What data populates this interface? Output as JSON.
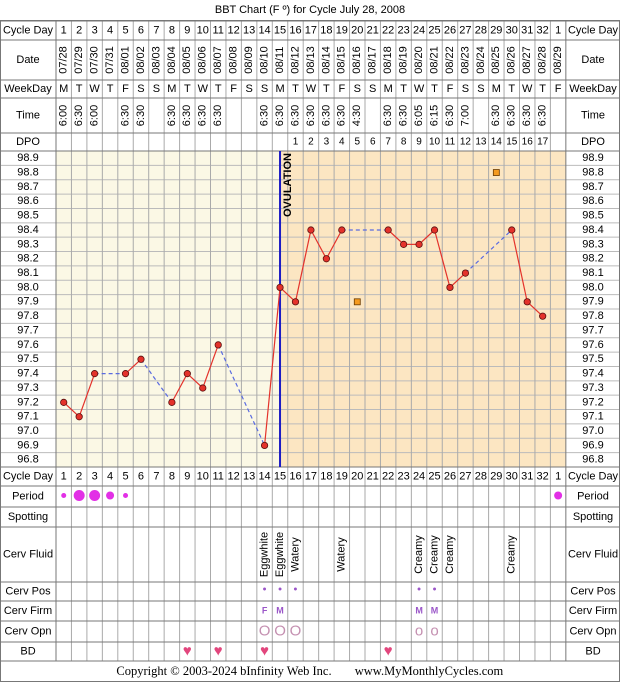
{
  "title": "BBT Chart (F º) for Cycle July 28, 2008",
  "footer": {
    "copyright": "Copyright © 2003-2024 bInfinity Web Inc.",
    "site": "www.MyMonthlyCycles.com"
  },
  "labels": {
    "cycle_day": "Cycle Day",
    "date": "Date",
    "weekday": "WeekDay",
    "time": "Time",
    "dpo": "DPO",
    "period": "Period",
    "spotting": "Spotting",
    "cerv_fluid": "Cerv Fluid",
    "cerv_pos": "Cerv Pos",
    "cerv_firm": "Cerv Firm",
    "cerv_opn": "Cerv Opn",
    "bd": "BD"
  },
  "days": {
    "date": [
      "07/28",
      "07/29",
      "07/30",
      "07/31",
      "08/01",
      "08/02",
      "08/03",
      "08/04",
      "08/05",
      "08/06",
      "08/07",
      "08/08",
      "08/09",
      "08/10",
      "08/11",
      "08/12",
      "08/13",
      "08/14",
      "08/15",
      "08/16",
      "08/17",
      "08/18",
      "08/19",
      "08/20",
      "08/21",
      "08/22",
      "08/23",
      "08/24",
      "08/25",
      "08/26",
      "08/27",
      "08/28",
      "08/29"
    ],
    "weekday": [
      "M",
      "T",
      "W",
      "T",
      "F",
      "S",
      "S",
      "M",
      "T",
      "W",
      "T",
      "F",
      "S",
      "S",
      "M",
      "T",
      "W",
      "T",
      "F",
      "S",
      "S",
      "M",
      "T",
      "W",
      "T",
      "F",
      "S",
      "S",
      "M",
      "T",
      "W",
      "T",
      "F"
    ],
    "time": [
      "6:00",
      "6:30",
      "6:00",
      null,
      "6:30",
      "6:30",
      null,
      "6:30",
      "6:30",
      "6:30",
      "6:30",
      null,
      null,
      "6:30",
      "6:30",
      "6:30",
      "6:30",
      "6:30",
      "6:30",
      "4:30",
      null,
      "6:30",
      "6:30",
      "6:05",
      "6:15",
      "6:30",
      "7:00",
      null,
      "6:30",
      "6:30",
      "6:30",
      "6:30",
      null
    ],
    "dpo": [
      null,
      null,
      null,
      null,
      null,
      null,
      null,
      null,
      null,
      null,
      null,
      null,
      null,
      null,
      null,
      1,
      2,
      3,
      4,
      5,
      6,
      7,
      8,
      9,
      10,
      11,
      12,
      13,
      14,
      15,
      16,
      17,
      null
    ],
    "period": [
      1,
      3,
      3,
      2,
      1,
      null,
      null,
      null,
      null,
      null,
      null,
      null,
      null,
      null,
      null,
      null,
      null,
      null,
      null,
      null,
      null,
      null,
      null,
      null,
      null,
      null,
      null,
      null,
      null,
      null,
      null,
      null,
      2
    ],
    "cerv_fluid": [
      null,
      null,
      null,
      null,
      null,
      null,
      null,
      null,
      null,
      null,
      null,
      null,
      null,
      "Eggwhite",
      "Eggwhite",
      "Watery",
      null,
      null,
      "Watery",
      null,
      null,
      null,
      null,
      "Creamy",
      "Creamy",
      "Creamy",
      null,
      null,
      null,
      "Creamy",
      null,
      null,
      null
    ],
    "cerv_pos": [
      null,
      null,
      null,
      null,
      null,
      null,
      null,
      null,
      null,
      null,
      null,
      null,
      null,
      "•",
      "•",
      "•",
      null,
      null,
      null,
      null,
      null,
      null,
      null,
      "•",
      "•",
      null,
      null,
      null,
      null,
      null,
      null,
      null,
      null
    ],
    "cerv_firm": [
      null,
      null,
      null,
      null,
      null,
      null,
      null,
      null,
      null,
      null,
      null,
      null,
      null,
      "F",
      "M",
      null,
      null,
      null,
      null,
      null,
      null,
      null,
      null,
      "M",
      "M",
      null,
      null,
      null,
      null,
      null,
      null,
      null,
      null
    ],
    "cerv_opn": [
      null,
      null,
      null,
      null,
      null,
      null,
      null,
      null,
      null,
      null,
      null,
      null,
      null,
      "O",
      "O",
      "O",
      null,
      null,
      null,
      null,
      null,
      null,
      null,
      "o",
      "o",
      null,
      null,
      null,
      null,
      null,
      null,
      null,
      null
    ],
    "bd": [
      null,
      null,
      null,
      null,
      null,
      null,
      null,
      null,
      "♥",
      null,
      "♥",
      null,
      null,
      "♥",
      null,
      null,
      null,
      null,
      null,
      null,
      null,
      "♥",
      null,
      null,
      null,
      null,
      null,
      null,
      null,
      null,
      null,
      null,
      null
    ]
  },
  "chart_data": {
    "type": "line",
    "categories": [
      1,
      2,
      3,
      4,
      5,
      6,
      7,
      8,
      9,
      10,
      11,
      12,
      13,
      14,
      15,
      16,
      17,
      18,
      19,
      20,
      21,
      22,
      23,
      24,
      25,
      26,
      27,
      28,
      29,
      30,
      31,
      32,
      1
    ],
    "series": [
      {
        "color": "#e4322b",
        "values": [
          97.2,
          97.1,
          97.4,
          null,
          97.4,
          97.5,
          null,
          97.2,
          97.4,
          97.3,
          97.6,
          null,
          null,
          96.9,
          98.0,
          97.9,
          98.4,
          98.2,
          98.4,
          null,
          null,
          98.4,
          98.3,
          98.3,
          98.4,
          98.0,
          98.1,
          null,
          null,
          98.4,
          97.9,
          97.8,
          null
        ]
      }
    ],
    "discarded": {
      "color": "#f59a1e",
      "values": [
        null,
        null,
        null,
        null,
        null,
        null,
        null,
        null,
        null,
        null,
        null,
        null,
        null,
        null,
        null,
        null,
        null,
        null,
        null,
        97.9,
        null,
        null,
        null,
        null,
        null,
        null,
        null,
        null,
        98.8,
        null,
        null,
        null,
        null
      ]
    },
    "ovulation_day": 15,
    "ovulation_label": "OVULATION",
    "ylim": [
      96.75,
      98.95
    ],
    "yticks": [
      98.9,
      98.8,
      98.7,
      98.6,
      98.5,
      98.4,
      98.3,
      98.2,
      98.1,
      {
        "value": 98.0,
        "label": "98.0"
      },
      97.9,
      97.8,
      97.7,
      97.6,
      97.5,
      97.4,
      97.3,
      97.2,
      97.1,
      {
        "value": 97.0,
        "label": "97.0"
      },
      96.9,
      96.8
    ]
  }
}
